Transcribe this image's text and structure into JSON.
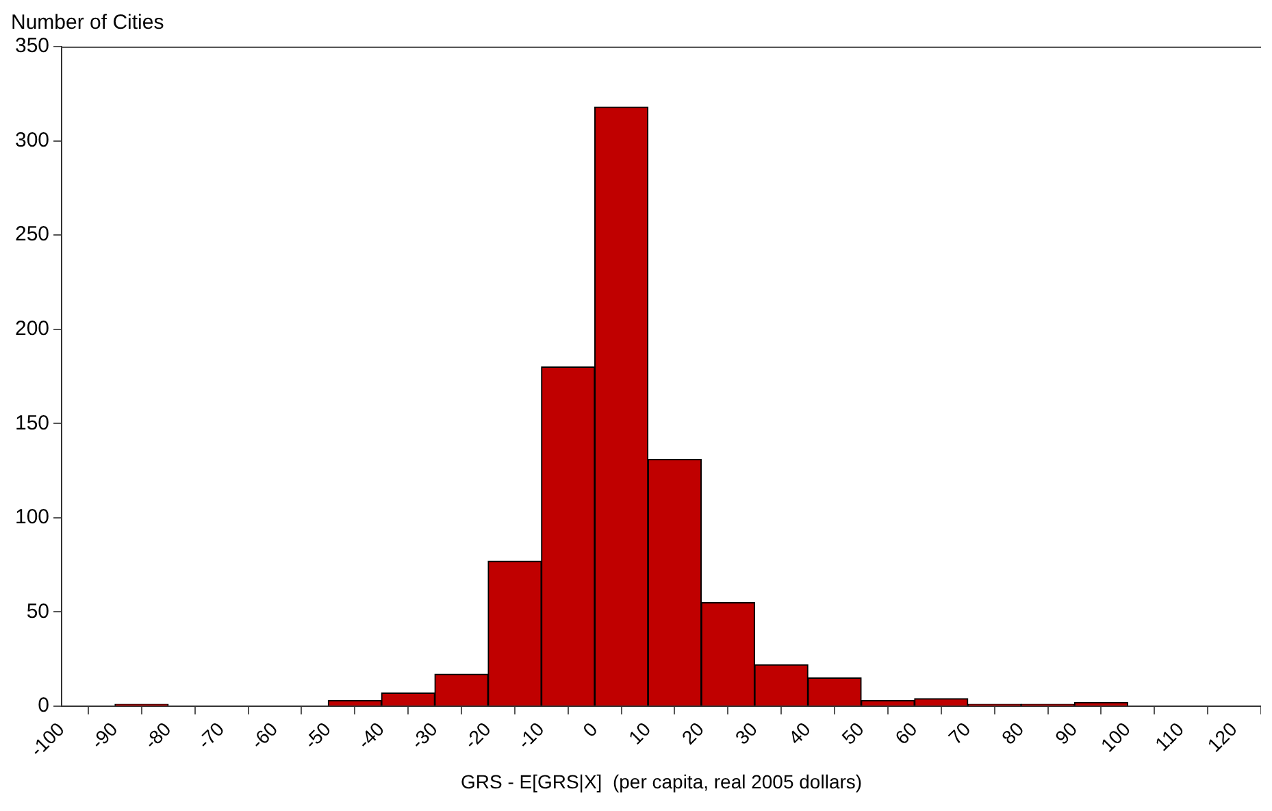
{
  "chart_data": {
    "type": "histogram",
    "xlabel": "GRS - E[GRS|X]  (per capita, real 2005 dollars)",
    "ylabel": "Number of Cities",
    "bins": [
      -100,
      -90,
      -80,
      -70,
      -60,
      -50,
      -40,
      -30,
      -20,
      -10,
      0,
      10,
      20,
      30,
      40,
      50,
      60,
      70,
      80,
      90,
      100
    ],
    "values": [
      0,
      1,
      0,
      0,
      0,
      3,
      7,
      17,
      77,
      180,
      318,
      131,
      55,
      22,
      15,
      3,
      4,
      1,
      1,
      2
    ],
    "color": "#c00000",
    "xlim": [
      -100,
      125
    ],
    "xticks": [
      -100,
      -90,
      -80,
      -70,
      -60,
      -50,
      -40,
      -30,
      -20,
      -10,
      0,
      10,
      20,
      30,
      40,
      50,
      60,
      70,
      80,
      90,
      100,
      110,
      120
    ],
    "ylim": [
      0,
      350
    ],
    "yticks": [
      0,
      50,
      100,
      150,
      200,
      250,
      300,
      350
    ],
    "grid": false,
    "legend": false
  }
}
